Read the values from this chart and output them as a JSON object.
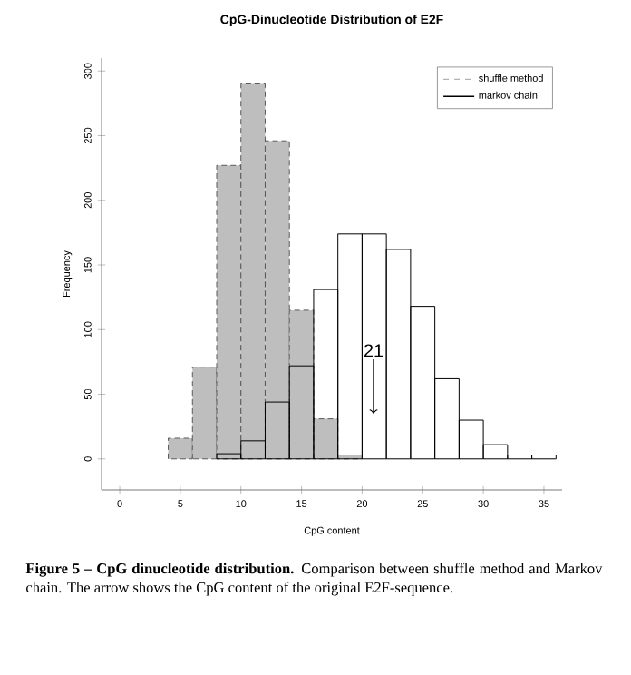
{
  "chart_data": {
    "type": "histogram",
    "title": "CpG-Dinucleotide Distribution of E2F",
    "xlabel": "CpG content",
    "ylabel": "Frequency",
    "bins": [
      4,
      6,
      8,
      10,
      12,
      14,
      16,
      18,
      20,
      22,
      24,
      26,
      28,
      30,
      32,
      34,
      36
    ],
    "series": [
      {
        "name": "shuffle method",
        "color": "#bebebe",
        "line_style": "dashed",
        "values": [
          16,
          71,
          227,
          290,
          246,
          115,
          31,
          3,
          null,
          null,
          null,
          null,
          null,
          null,
          null,
          null
        ]
      },
      {
        "name": "markov chain",
        "color": "#000000",
        "line_style": "solid",
        "values": [
          null,
          null,
          4,
          14,
          44,
          72,
          131,
          174,
          174,
          162,
          118,
          62,
          30,
          11,
          3,
          3
        ]
      }
    ],
    "xlim": [
      -1.5,
      36.5
    ],
    "ylim": [
      -24,
      310
    ],
    "xticks": [
      0,
      5,
      10,
      15,
      20,
      25,
      30,
      35
    ],
    "yticks": [
      0,
      50,
      100,
      150,
      200,
      250,
      300
    ],
    "legend": "top right",
    "grid": false,
    "annotations": [
      "21",
      "**Figure 5 – CpG dinucleotide distribution.** Comparison between shuffle method and Markov chain. The arrow shows the CpG content of the original E2F-sequence."
    ]
  }
}
